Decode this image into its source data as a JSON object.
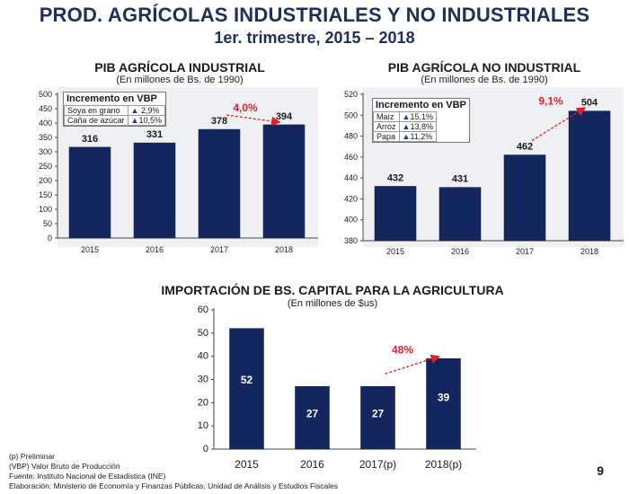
{
  "header": {
    "title": "PROD. AGRÍCOLAS INDUSTRIALES Y NO INDUSTRIALES",
    "subtitle": "1er. trimestre, 2015 – 2018"
  },
  "colors": {
    "bar": "#14265e",
    "bar_edge": "#0b1a45",
    "accent": "#e0202a",
    "panel": "#eef0f3"
  },
  "chart_data": [
    {
      "type": "bar",
      "title": "PIB AGRÍCOLA INDUSTRIAL",
      "subtitle": "(En millones de Bs. de 1990)",
      "categories": [
        "2015",
        "2016",
        "2017",
        "2018"
      ],
      "values": [
        316,
        331,
        378,
        394
      ],
      "value_labels": [
        "316",
        "331",
        "378",
        "394"
      ],
      "ylim": [
        0,
        500
      ],
      "yticks": [
        0,
        50,
        100,
        150,
        200,
        250,
        300,
        350,
        400,
        450,
        500
      ],
      "growth_annotation": "4,0%",
      "legend_box": {
        "header": "Incremento en VBP",
        "rows": [
          {
            "label": "Soya en grano",
            "value": "2,9%"
          },
          {
            "label": "Caña de azúcar",
            "value": "10,5%"
          }
        ]
      }
    },
    {
      "type": "bar",
      "title": "PIB AGRÍCOLA NO INDUSTRIAL",
      "subtitle": "(En millones de Bs. de 1990)",
      "categories": [
        "2015",
        "2016",
        "2017",
        "2018"
      ],
      "values": [
        432,
        431,
        462,
        504
      ],
      "value_labels": [
        "432",
        "431",
        "462",
        "504"
      ],
      "ylim": [
        380,
        520
      ],
      "yticks": [
        380,
        400,
        420,
        440,
        460,
        480,
        500,
        520
      ],
      "growth_annotation": "9,1%",
      "legend_box": {
        "header": "Incremento en VBP",
        "rows": [
          {
            "label": "Maíz",
            "value": "15,1%"
          },
          {
            "label": "Arroz",
            "value": "13,8%"
          },
          {
            "label": "Papa",
            "value": "11,2%"
          }
        ]
      }
    },
    {
      "type": "bar",
      "title": "IMPORTACIÓN DE BS. CAPITAL PARA LA AGRICULTURA",
      "subtitle": "(En millones de $us)",
      "categories": [
        "2015",
        "2016",
        "2017(p)",
        "2018(p)"
      ],
      "values": [
        52,
        27,
        27,
        39
      ],
      "value_labels": [
        "52",
        "27",
        "27",
        "39"
      ],
      "ylim": [
        0,
        60
      ],
      "yticks": [
        0,
        10,
        20,
        30,
        40,
        50,
        60
      ],
      "growth_annotation": "48%"
    }
  ],
  "footnotes": [
    "(p) Preliminar",
    "(VBP) Valor Bruto de Producción",
    "Fuente: Instituto Nacional de Estadística (INE)",
    "Elaboración: Ministerio de Economía y Finanzas Públicas, Unidad de Análisis y Estudios Fiscales"
  ],
  "page_number": "9"
}
